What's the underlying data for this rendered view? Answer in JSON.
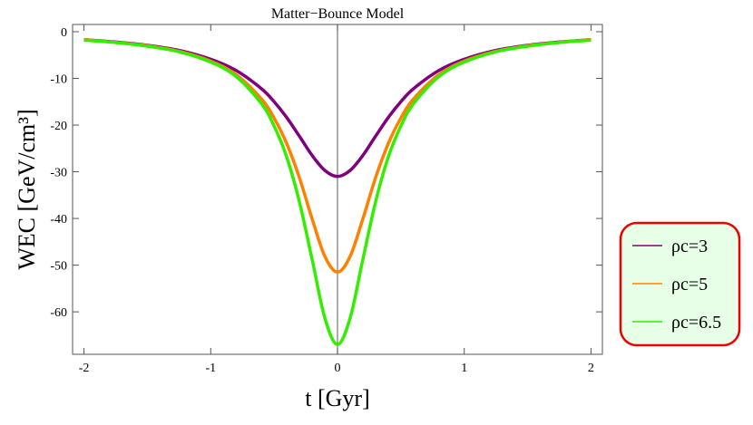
{
  "chart_data": {
    "type": "line",
    "title": "Matter−Bounce Model",
    "x_label": "t [Gyr]",
    "y_label": "WEC [GeV/cm³]",
    "x": [
      -2,
      -1.75,
      -1.5,
      -1.25,
      -1,
      -0.8,
      -0.6,
      -0.5,
      -0.4,
      -0.3,
      -0.2,
      -0.1,
      0,
      0.1,
      0.2,
      0.3,
      0.4,
      0.5,
      0.6,
      0.8,
      1,
      1.25,
      1.5,
      1.75,
      2
    ],
    "series": [
      {
        "name": "ρc=3",
        "color": "#800080",
        "values": [
          -1.7,
          -2.2,
          -2.9,
          -4.0,
          -5.9,
          -8.3,
          -12.2,
          -15.0,
          -18.4,
          -22.4,
          -26.5,
          -29.7,
          -31,
          -29.7,
          -26.5,
          -22.4,
          -18.4,
          -15.0,
          -12.2,
          -8.3,
          -5.9,
          -4.0,
          -2.9,
          -2.2,
          -1.7
        ]
      },
      {
        "name": "ρc=5",
        "color": "#ff8000",
        "values": [
          -1.7,
          -2.3,
          -3.0,
          -4.2,
          -6.3,
          -9.2,
          -14.4,
          -18.5,
          -24.0,
          -31.3,
          -40.1,
          -48.1,
          -51.5,
          -48.1,
          -40.1,
          -31.3,
          -24.0,
          -18.5,
          -14.4,
          -9.2,
          -6.3,
          -4.2,
          -3.0,
          -2.3,
          -1.7
        ]
      },
      {
        "name": "ρc=6.5",
        "color": "#33ee00",
        "values": [
          -1.8,
          -2.3,
          -3.1,
          -4.3,
          -6.5,
          -9.6,
          -15.4,
          -20.2,
          -26.9,
          -36.5,
          -48.8,
          -61.3,
          -67,
          -61.3,
          -48.8,
          -36.5,
          -26.9,
          -20.2,
          -15.4,
          -9.6,
          -6.5,
          -4.3,
          -3.1,
          -2.3,
          -1.8
        ]
      }
    ],
    "xlim": [
      -2.09,
      2.09
    ],
    "ylim": [
      -69.1,
      1.55
    ],
    "xticks": [
      -2,
      -1,
      0,
      1,
      2
    ],
    "yticks": [
      0,
      -10,
      -20,
      -30,
      -40,
      -50,
      -60
    ],
    "legend": "right"
  }
}
